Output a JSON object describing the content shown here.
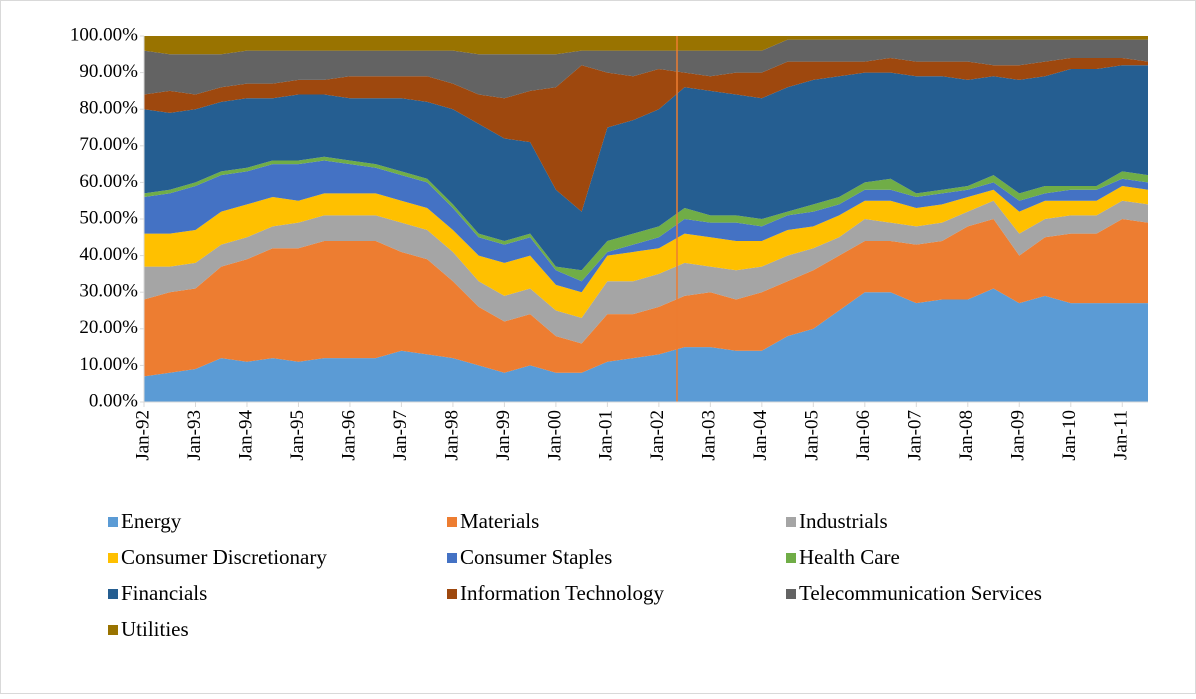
{
  "chart_data": {
    "type": "stacked_area",
    "categories": [
      "Jan-92",
      null,
      "Jan-93",
      null,
      "Jan-94",
      null,
      "Jan-95",
      null,
      "Jan-96",
      null,
      "Jan-97",
      null,
      "Jan-98",
      null,
      "Jan-99",
      null,
      "Jan-00",
      null,
      "Jan-01",
      null,
      "Jan-02",
      null,
      "Jan-03",
      null,
      "Jan-04",
      null,
      "Jan-05",
      null,
      "Jan-06",
      null,
      "Jan-07",
      null,
      "Jan-08",
      null,
      "Jan-09",
      null,
      "Jan-10",
      null,
      "Jan-11",
      null
    ],
    "ylim": [
      0,
      100
    ],
    "yticks": [
      {
        "value": 0,
        "label": "0.00%"
      },
      {
        "value": 10,
        "label": "10.00%"
      },
      {
        "value": 20,
        "label": "20.00%"
      },
      {
        "value": 30,
        "label": "30.00%"
      },
      {
        "value": 40,
        "label": "40.00%"
      },
      {
        "value": 50,
        "label": "50.00%"
      },
      {
        "value": 60,
        "label": "60.00%"
      },
      {
        "value": 70,
        "label": "70.00%"
      },
      {
        "value": 80,
        "label": "80.00%"
      },
      {
        "value": 90,
        "label": "90.00%"
      },
      {
        "value": 100,
        "label": "100.00%"
      }
    ],
    "series": [
      {
        "name": "Energy",
        "color": "#5b9bd5",
        "values": [
          7,
          8,
          9,
          12,
          11,
          12,
          11,
          12,
          12,
          12,
          14,
          13,
          12,
          10,
          8,
          10,
          8,
          8,
          11,
          12,
          13,
          15,
          15,
          14,
          14,
          18,
          20,
          25,
          30,
          30,
          27,
          28,
          28,
          31,
          27,
          29,
          27,
          27,
          27,
          27
        ]
      },
      {
        "name": "Materials",
        "color": "#ed7d31",
        "values": [
          21,
          22,
          22,
          25,
          28,
          30,
          31,
          32,
          32,
          32,
          27,
          26,
          21,
          16,
          14,
          14,
          10,
          8,
          13,
          12,
          13,
          14,
          15,
          14,
          16,
          15,
          16,
          15,
          14,
          14,
          16,
          16,
          20,
          19,
          13,
          16,
          19,
          19,
          23,
          22
        ]
      },
      {
        "name": "Industrials",
        "color": "#a5a5a5",
        "values": [
          9,
          7,
          7,
          6,
          6,
          6,
          7,
          7,
          7,
          7,
          8,
          8,
          8,
          7,
          7,
          7,
          7,
          7,
          9,
          9,
          9,
          9,
          7,
          8,
          7,
          7,
          6,
          5,
          6,
          5,
          5,
          5,
          4,
          5,
          6,
          5,
          5,
          5,
          5,
          5
        ]
      },
      {
        "name": "Consumer Discretionary",
        "color": "#ffc000",
        "values": [
          9,
          9,
          9,
          9,
          9,
          8,
          6,
          6,
          6,
          6,
          6,
          6,
          6,
          7,
          9,
          9,
          7,
          7,
          7,
          8,
          7,
          8,
          8,
          8,
          7,
          7,
          6,
          6,
          5,
          6,
          5,
          5,
          4,
          3,
          6,
          5,
          4,
          4,
          4,
          4
        ]
      },
      {
        "name": "Consumer Staples",
        "color": "#4472c4",
        "values": [
          10,
          11,
          12,
          10,
          9,
          9,
          10,
          9,
          8,
          7,
          7,
          7,
          6,
          5,
          5,
          5,
          4,
          3,
          1,
          2,
          3,
          4,
          4,
          5,
          4,
          4,
          4,
          3,
          3,
          3,
          3,
          3,
          2,
          2,
          3,
          2,
          3,
          3,
          2,
          2
        ]
      },
      {
        "name": "Health Care",
        "color": "#70ad47",
        "values": [
          1,
          1,
          1,
          1,
          1,
          1,
          1,
          1,
          1,
          1,
          1,
          1,
          1,
          1,
          1,
          1,
          1,
          3,
          3,
          3,
          3,
          3,
          2,
          2,
          2,
          1,
          2,
          2,
          2,
          3,
          1,
          1,
          1,
          2,
          2,
          2,
          1,
          1,
          2,
          2
        ]
      },
      {
        "name": "Financials",
        "color": "#255e91",
        "values": [
          23,
          21,
          20,
          19,
          19,
          17,
          18,
          17,
          17,
          18,
          20,
          21,
          26,
          30,
          28,
          25,
          21,
          16,
          31,
          31,
          32,
          33,
          34,
          33,
          33,
          34,
          34,
          33,
          30,
          29,
          32,
          31,
          29,
          27,
          31,
          30,
          32,
          32,
          29,
          30
        ]
      },
      {
        "name": "Information Technology",
        "color": "#9e480e",
        "values": [
          4,
          6,
          4,
          4,
          4,
          4,
          4,
          4,
          6,
          6,
          6,
          7,
          7,
          8,
          11,
          14,
          28,
          40,
          15,
          12,
          11,
          4,
          4,
          6,
          7,
          7,
          5,
          4,
          3,
          4,
          4,
          4,
          5,
          3,
          4,
          4,
          3,
          3,
          2,
          1
        ]
      },
      {
        "name": "Telecommunication Services",
        "color": "#636363",
        "values": [
          12,
          10,
          11,
          9,
          9,
          9,
          8,
          8,
          7,
          7,
          7,
          7,
          9,
          11,
          12,
          10,
          9,
          4,
          6,
          7,
          5,
          6,
          7,
          6,
          6,
          6,
          6,
          6,
          6,
          5,
          6,
          6,
          6,
          7,
          7,
          6,
          5,
          5,
          5,
          6
        ]
      },
      {
        "name": "Utilities",
        "color": "#997300",
        "values": [
          4,
          5,
          5,
          5,
          4,
          4,
          4,
          4,
          4,
          4,
          4,
          4,
          4,
          5,
          5,
          5,
          5,
          4,
          4,
          4,
          4,
          4,
          4,
          4,
          4,
          1,
          1,
          1,
          1,
          1,
          1,
          1,
          1,
          1,
          1,
          1,
          1,
          1,
          1,
          1
        ]
      }
    ]
  }
}
